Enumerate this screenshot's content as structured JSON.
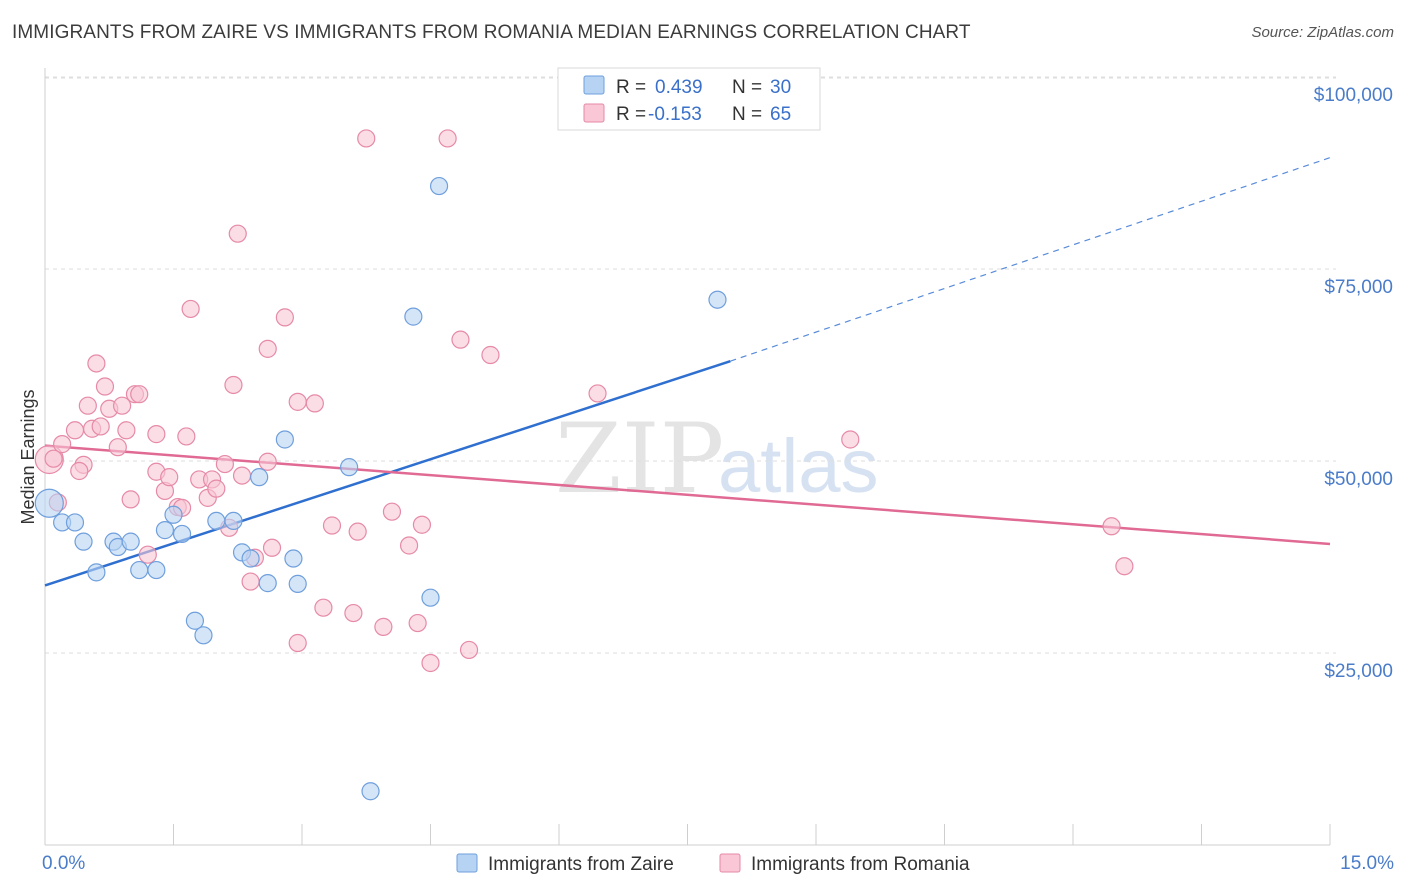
{
  "title": "IMMIGRANTS FROM ZAIRE VS IMMIGRANTS FROM ROMANIA MEDIAN EARNINGS CORRELATION CHART",
  "source": "Source: ZipAtlas.com",
  "watermark": {
    "zip": "ZIP",
    "atlas": "atlas"
  },
  "colors": {
    "zaire_fill": "#b7d3f4",
    "zaire_stroke": "#6f9fdc",
    "zaire_line": "#2f6fcf",
    "romania_fill": "#f9c7d6",
    "romania_stroke": "#e68aa7",
    "romania_line": "#e06a93",
    "grid": "#dedede",
    "tick_label": "#4a7cc9"
  },
  "legend": {
    "rows": [
      {
        "r_label": "R =",
        "r_value": "0.439",
        "n_label": "N =",
        "n_value": "30"
      },
      {
        "r_label": "R =",
        "r_value": "-0.153",
        "n_label": "N =",
        "n_value": "65"
      }
    ]
  },
  "chart_data": {
    "type": "scatter",
    "title": "IMMIGRANTS FROM ZAIRE VS IMMIGRANTS FROM ROMANIA MEDIAN EARNINGS CORRELATION CHART",
    "xlabel": "",
    "ylabel": "Median Earnings",
    "xlim": [
      0,
      15
    ],
    "ylim": [
      0,
      105000
    ],
    "x_tick_labels": [
      "0.0%",
      "15.0%"
    ],
    "y_ticks": [
      25000,
      50000,
      75000,
      100000
    ],
    "y_tick_labels": [
      "$25,000",
      "$50,000",
      "$75,000",
      "$100,000"
    ],
    "grid": true,
    "legend_position": "top-center",
    "series": [
      {
        "name": "Immigrants from Zaire",
        "trend": {
          "x0": 0,
          "y0": 33800,
          "x1": 8.0,
          "y1": 63000,
          "dashed_to_x": 15.0,
          "dashed_to_y": 89500
        },
        "points": [
          [
            0.05,
            44500
          ],
          [
            0.2,
            42000
          ],
          [
            0.35,
            42000
          ],
          [
            0.45,
            39500
          ],
          [
            0.6,
            35500
          ],
          [
            0.8,
            39500
          ],
          [
            0.85,
            38800
          ],
          [
            1.0,
            39500
          ],
          [
            1.1,
            35800
          ],
          [
            1.3,
            35800
          ],
          [
            1.4,
            41000
          ],
          [
            1.5,
            43000
          ],
          [
            1.6,
            40500
          ],
          [
            1.75,
            29200
          ],
          [
            1.85,
            27300
          ],
          [
            2.0,
            42200
          ],
          [
            2.2,
            42200
          ],
          [
            2.3,
            38100
          ],
          [
            2.4,
            37300
          ],
          [
            2.5,
            47900
          ],
          [
            2.6,
            34100
          ],
          [
            2.8,
            52800
          ],
          [
            2.9,
            37300
          ],
          [
            2.95,
            34000
          ],
          [
            3.55,
            49200
          ],
          [
            3.8,
            7000
          ],
          [
            4.3,
            68800
          ],
          [
            4.5,
            32200
          ],
          [
            4.6,
            85800
          ],
          [
            7.85,
            71000
          ]
        ]
      },
      {
        "name": "Immigrants from Romania",
        "trend": {
          "x0": 0,
          "y0": 52000,
          "x1": 15.0,
          "y1": 39200
        },
        "points": [
          [
            0.05,
            50200
          ],
          [
            0.2,
            52200
          ],
          [
            0.35,
            54000
          ],
          [
            0.45,
            49500
          ],
          [
            0.5,
            57200
          ],
          [
            0.55,
            54200
          ],
          [
            0.65,
            54500
          ],
          [
            0.6,
            62700
          ],
          [
            0.7,
            59700
          ],
          [
            0.75,
            56800
          ],
          [
            0.85,
            51800
          ],
          [
            0.9,
            57200
          ],
          [
            0.95,
            54000
          ],
          [
            1.05,
            58700
          ],
          [
            1.0,
            45000
          ],
          [
            1.1,
            58700
          ],
          [
            1.2,
            37800
          ],
          [
            1.3,
            53500
          ],
          [
            1.3,
            48600
          ],
          [
            1.4,
            46100
          ],
          [
            1.45,
            47900
          ],
          [
            1.55,
            44000
          ],
          [
            1.6,
            43900
          ],
          [
            1.65,
            53200
          ],
          [
            1.7,
            69800
          ],
          [
            1.8,
            47600
          ],
          [
            1.9,
            45200
          ],
          [
            1.95,
            47600
          ],
          [
            2.0,
            46400
          ],
          [
            2.1,
            49600
          ],
          [
            2.15,
            41300
          ],
          [
            2.2,
            59900
          ],
          [
            2.25,
            79600
          ],
          [
            2.3,
            48100
          ],
          [
            2.4,
            34300
          ],
          [
            2.45,
            37400
          ],
          [
            2.6,
            49900
          ],
          [
            2.6,
            64600
          ],
          [
            2.65,
            38700
          ],
          [
            2.8,
            68700
          ],
          [
            2.95,
            26300
          ],
          [
            2.95,
            57700
          ],
          [
            3.15,
            57500
          ],
          [
            3.25,
            30900
          ],
          [
            3.35,
            41600
          ],
          [
            3.6,
            30200
          ],
          [
            3.65,
            40800
          ],
          [
            3.75,
            92000
          ],
          [
            3.95,
            28400
          ],
          [
            4.05,
            43400
          ],
          [
            4.25,
            39000
          ],
          [
            4.35,
            28900
          ],
          [
            4.4,
            41700
          ],
          [
            4.5,
            23700
          ],
          [
            4.7,
            92000
          ],
          [
            4.85,
            65800
          ],
          [
            4.95,
            25400
          ],
          [
            5.2,
            63800
          ],
          [
            6.45,
            58800
          ],
          [
            9.4,
            52800
          ],
          [
            12.45,
            41500
          ],
          [
            12.6,
            36300
          ],
          [
            0.1,
            50300
          ],
          [
            0.15,
            44600
          ],
          [
            0.4,
            48700
          ]
        ]
      }
    ]
  }
}
